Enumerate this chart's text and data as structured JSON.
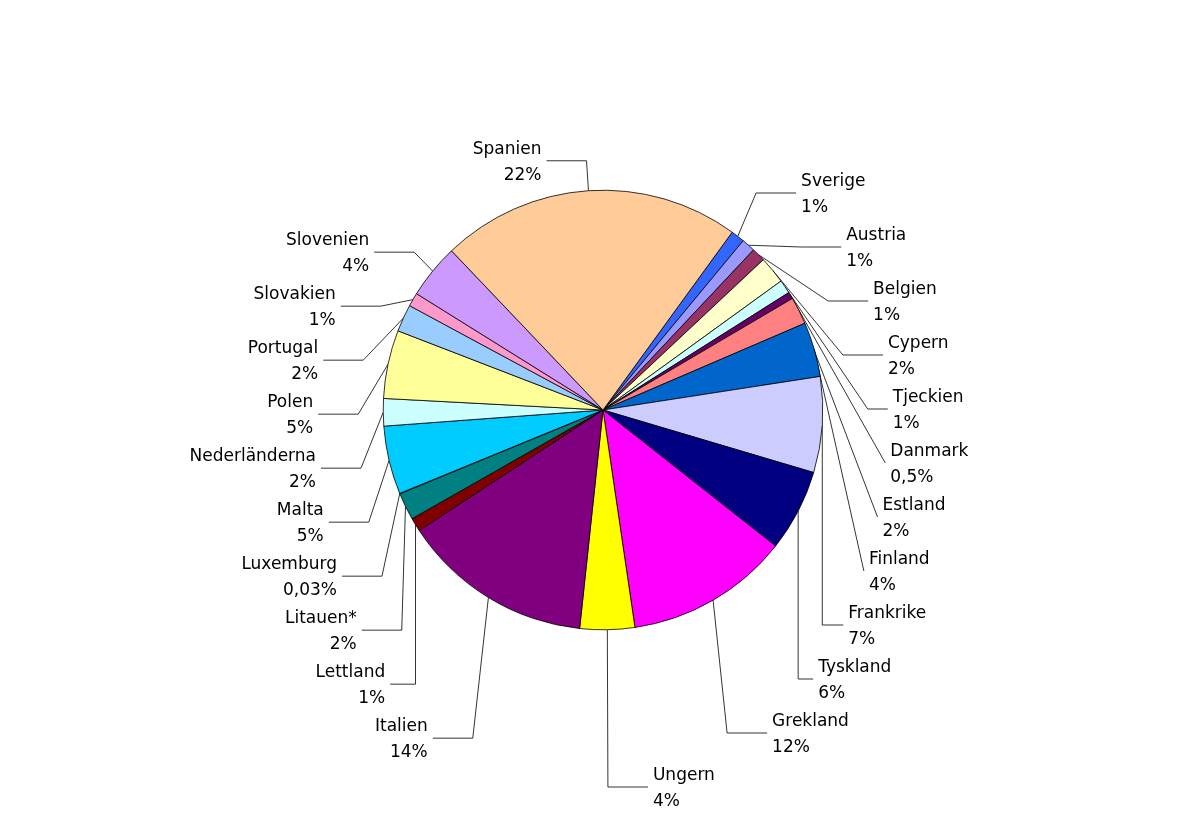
{
  "chart_data": {
    "type": "pie",
    "categories": [
      "Sverige",
      "Austria",
      "Belgien",
      "Cypern",
      "Tjeckien",
      "Danmark",
      "Estland",
      "Finland",
      "Frankrike",
      "Tyskland",
      "Grekland",
      "Ungern",
      "Italien",
      "Lettland",
      "Litauen*",
      "Luxemburg",
      "Malta",
      "Nederländerna",
      "Polen",
      "Portugal",
      "Slovakien",
      "Slovenien",
      "Spanien"
    ],
    "values": [
      1,
      1,
      1,
      2,
      1,
      0.5,
      2,
      4,
      7,
      6,
      12,
      4,
      14,
      1,
      2,
      0.03,
      5,
      2,
      5,
      2,
      1,
      4,
      22
    ],
    "value_labels": [
      "1%",
      "1%",
      "1%",
      "2%",
      "1%",
      "0,5%",
      "2%",
      "4%",
      "7%",
      "6%",
      "12%",
      "4%",
      "14%",
      "1%",
      "2%",
      "0,03%",
      "5%",
      "2%",
      "5%",
      "2%",
      "1%",
      "4%",
      "22%"
    ],
    "colors": [
      "#3366ff",
      "#9999ff",
      "#993366",
      "#ffffcc",
      "#ccffff",
      "#660066",
      "#ff8080",
      "#0066cc",
      "#ccccff",
      "#000080",
      "#ff00ff",
      "#ffff00",
      "#800080",
      "#800000",
      "#008080",
      "#00ffff",
      "#00ccff",
      "#ccffff",
      "#ffff99",
      "#99ccff",
      "#ff99cc",
      "#cc99ff",
      "#ffcc99"
    ],
    "legend": false
  }
}
